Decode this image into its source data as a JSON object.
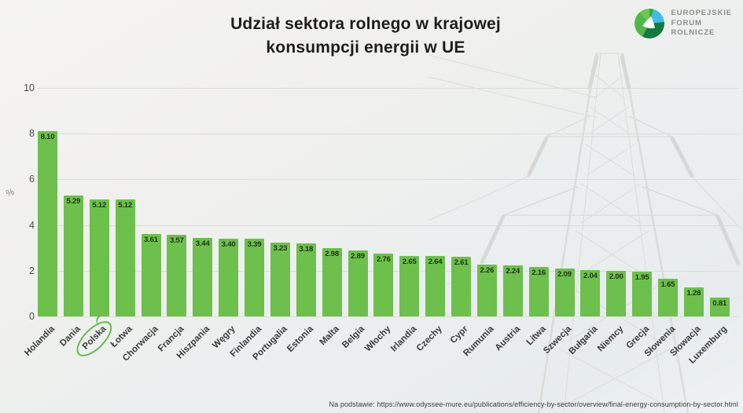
{
  "header": {
    "title_line1": "Udział sektora rolnego w krajowej",
    "title_line2": "konsumpcji energii w UE",
    "logo": {
      "line1": "EUROPEJSKIE",
      "line2": "FORUM",
      "line3": "ROLNICZE"
    }
  },
  "chart_data": {
    "type": "bar",
    "title": "Udział sektora rolnego w krajowej konsumpcji energii w UE",
    "xlabel": "",
    "ylabel": "%",
    "ylim": [
      0,
      10
    ],
    "yticks": [
      0,
      2,
      4,
      6,
      8,
      10
    ],
    "grid": true,
    "legend": "none",
    "bar_color": "#6cc04b",
    "highlight_color": "#62bb46",
    "highlighted_category": "Polska",
    "categories": [
      "Holandia",
      "Dania",
      "Polska",
      "Łotwa",
      "Chorwacja",
      "Francja",
      "Hiszpania",
      "Węgry",
      "Finlandia",
      "Portugalia",
      "Estonia",
      "Malta",
      "Belgia",
      "Włochy",
      "Irlandia",
      "Czechy",
      "Cypr",
      "Rumunia",
      "Austria",
      "Litwa",
      "Szwecja",
      "Bułgaria",
      "Niemcy",
      "Grecja",
      "Słowenia",
      "Słowacja",
      "Luxemburg"
    ],
    "values": [
      8.1,
      5.29,
      5.12,
      5.12,
      3.61,
      3.57,
      3.44,
      3.4,
      3.39,
      3.23,
      3.18,
      2.98,
      2.89,
      2.76,
      2.65,
      2.64,
      2.61,
      2.26,
      2.24,
      2.16,
      2.09,
      2.04,
      2.0,
      1.95,
      1.65,
      1.28,
      0.81
    ]
  },
  "footer": {
    "source": "Na podstawie: https://www.odyssee-mure.eu/publications/efficiency-by-sector/overview/final-energy-consumption-by-sector.html"
  }
}
